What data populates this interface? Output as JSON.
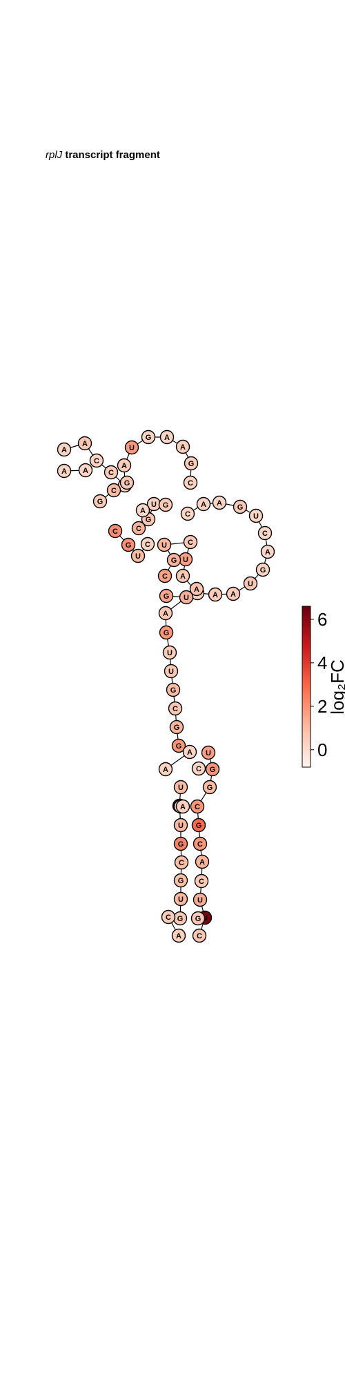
{
  "title": {
    "gene": "rplJ",
    "rest": " transcript fragment"
  },
  "colorbar": {
    "label": "log₂FC",
    "ticks": [
      "0",
      "2",
      "4",
      "6"
    ],
    "tick_values": [
      0,
      2,
      4,
      6
    ],
    "range": [
      -0.8,
      6.6
    ],
    "colormap": [
      "#fff5f0",
      "#fcbba1",
      "#fb6a4a",
      "#cb181d",
      "#67000d"
    ]
  },
  "structure": {
    "nucleotides": [
      {
        "base": "A",
        "value": 0.3
      },
      {
        "base": "A",
        "value": 0.6
      },
      {
        "base": "C",
        "value": 0.3
      },
      {
        "base": "C",
        "value": 0.5
      },
      {
        "base": "G",
        "value": 0.2
      },
      {
        "base": "A",
        "value": 0.5
      },
      {
        "base": "U",
        "value": 1.8
      },
      {
        "base": "G",
        "value": 0.3
      },
      {
        "base": "A",
        "value": 0.2
      },
      {
        "base": "A",
        "value": 0.4
      },
      {
        "base": "G",
        "value": 0.5
      },
      {
        "base": "C",
        "value": 0.3
      },
      {
        "base": "G",
        "value": 0.6
      },
      {
        "base": "C",
        "value": 1.0
      },
      {
        "base": "G",
        "value": 0.5
      },
      {
        "base": "A",
        "value": 0.2
      },
      {
        "base": "A",
        "value": 0.2
      },
      {
        "base": "C",
        "value": 1.2
      },
      {
        "base": "G",
        "value": 0.7
      },
      {
        "base": "U",
        "value": 0.4
      },
      {
        "base": "A",
        "value": 0.1
      },
      {
        "base": "G",
        "value": 0.5
      },
      {
        "base": "C",
        "value": 0.3
      },
      {
        "base": "U",
        "value": 1.0
      },
      {
        "base": "G",
        "value": 2.0
      },
      {
        "base": "C",
        "value": 2.1
      },
      {
        "base": "C",
        "value": 0.2
      },
      {
        "base": "A",
        "value": 0.3
      },
      {
        "base": "A",
        "value": 0.3
      },
      {
        "base": "G",
        "value": 0.6
      },
      {
        "base": "U",
        "value": 0.2
      },
      {
        "base": "C",
        "value": 0.2
      },
      {
        "base": "A",
        "value": 0.2
      },
      {
        "base": "G",
        "value": 0.3
      },
      {
        "base": "U",
        "value": 0.7
      },
      {
        "base": "A",
        "value": 0.5
      },
      {
        "base": "A",
        "value": 0.5
      },
      {
        "base": "U",
        "value": 0.3
      },
      {
        "base": "A",
        "value": 0.6
      },
      {
        "base": "U",
        "value": 1.7
      },
      {
        "base": "C",
        "value": 0.6
      },
      {
        "base": "U",
        "value": 1.1
      },
      {
        "base": "G",
        "value": 1.2
      },
      {
        "base": "C",
        "value": 1.6
      },
      {
        "base": "A",
        "value": 0.8
      },
      {
        "base": "G",
        "value": 1.5
      },
      {
        "base": "U",
        "value": 1.3
      },
      {
        "base": "A",
        "value": 0.6
      },
      {
        "base": "G",
        "value": 1.9
      },
      {
        "base": "U",
        "value": 0.5
      },
      {
        "base": "U",
        "value": 0.6
      },
      {
        "base": "G",
        "value": 1.0
      },
      {
        "base": "C",
        "value": 0.7
      },
      {
        "base": "G",
        "value": 1.2
      },
      {
        "base": "G",
        "value": 1.9
      },
      {
        "base": "A",
        "value": 0.2
      },
      {
        "base": "A",
        "value": 0.3
      },
      {
        "base": "U",
        "value": 1.7
      },
      {
        "base": "G",
        "value": 1.9
      },
      {
        "base": "G",
        "value": 1.0
      },
      {
        "base": "C",
        "value": 1.9
      },
      {
        "base": "G",
        "value": 2.9
      },
      {
        "base": "C",
        "value": 1.9
      },
      {
        "base": "A",
        "value": 1.2
      },
      {
        "base": "C",
        "value": 0.6
      },
      {
        "base": "U",
        "value": 1.4
      },
      {
        "base": "U",
        "value": 6.3
      },
      {
        "base": "C",
        "value": 0.7
      },
      {
        "base": "U",
        "value": 1.0
      },
      {
        "base": "A",
        "value": 0.7
      },
      {
        "base": "U",
        "value": 1.1
      },
      {
        "base": "G",
        "value": 2.3
      },
      {
        "base": "C",
        "value": 1.0
      },
      {
        "base": "G",
        "value": 0.9
      },
      {
        "base": "U",
        "value": 1.1
      },
      {
        "base": "G",
        "value": 0.6
      },
      {
        "base": "C",
        "value": 0.5
      },
      {
        "base": "A",
        "value": 0.4
      },
      {
        "base": "G",
        "value": 1.0
      },
      {
        "base": "U",
        "value": 0.2
      },
      {
        "base": "A",
        "value": 0.4
      },
      {
        "base": "C",
        "value": 0.2
      },
      {
        "base": "G",
        "value": 0.6
      }
    ],
    "pairs": [
      [
        "G",
        "C"
      ],
      [
        "C",
        "G"
      ],
      [
        "G",
        "C"
      ],
      [
        "G",
        "A"
      ],
      [
        "U",
        "A"
      ],
      [
        "G",
        "C"
      ],
      [
        "C",
        "G"
      ],
      [
        "U",
        "G"
      ],
      [
        "A",
        "U"
      ],
      [
        "C",
        "G"
      ],
      [
        "U",
        "A"
      ],
      [
        "G",
        "U"
      ],
      [
        "U",
        "A"
      ],
      [
        "G",
        "C"
      ],
      [
        "C",
        "G"
      ],
      [
        "C",
        "G"
      ],
      [
        "G",
        "C"
      ],
      [
        "C",
        "G"
      ],
      [
        "G",
        "U"
      ]
    ]
  }
}
